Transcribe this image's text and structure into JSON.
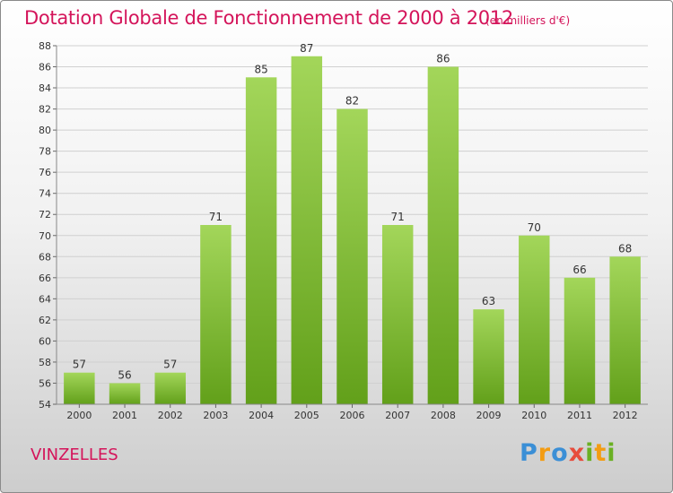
{
  "header": {
    "title": "Dotation Globale de Fonctionnement de 2000 à 2012",
    "subtitle": "(en milliers d'€)"
  },
  "footer": {
    "commune": "VINZELLES",
    "brand_letters": [
      {
        "ch": "P",
        "color": "#3b8fd6"
      },
      {
        "ch": "r",
        "color": "#f39c12"
      },
      {
        "ch": "o",
        "color": "#3b8fd6"
      },
      {
        "ch": "x",
        "color": "#e74c3c"
      },
      {
        "ch": "i",
        "color": "#6ab023"
      },
      {
        "ch": "t",
        "color": "#f39c12"
      },
      {
        "ch": "i",
        "color": "#6ab023"
      }
    ]
  },
  "chart_data": {
    "type": "bar",
    "title": "Dotation Globale de Fonctionnement de 2000 à 2012",
    "subtitle": "(en milliers d'€)",
    "categories": [
      "2000",
      "2001",
      "2002",
      "2003",
      "2004",
      "2005",
      "2006",
      "2007",
      "2008",
      "2009",
      "2010",
      "2011",
      "2012"
    ],
    "values": [
      57,
      56,
      57,
      71,
      85,
      87,
      82,
      71,
      86,
      63,
      70,
      66,
      68
    ],
    "ylim": [
      54,
      88
    ],
    "yticks": [
      54,
      56,
      58,
      60,
      62,
      64,
      66,
      68,
      70,
      72,
      74,
      76,
      78,
      80,
      82,
      84,
      86,
      88
    ],
    "grid": true,
    "bar_color_top": "#a3d65a",
    "bar_color_bottom": "#62a01a"
  }
}
